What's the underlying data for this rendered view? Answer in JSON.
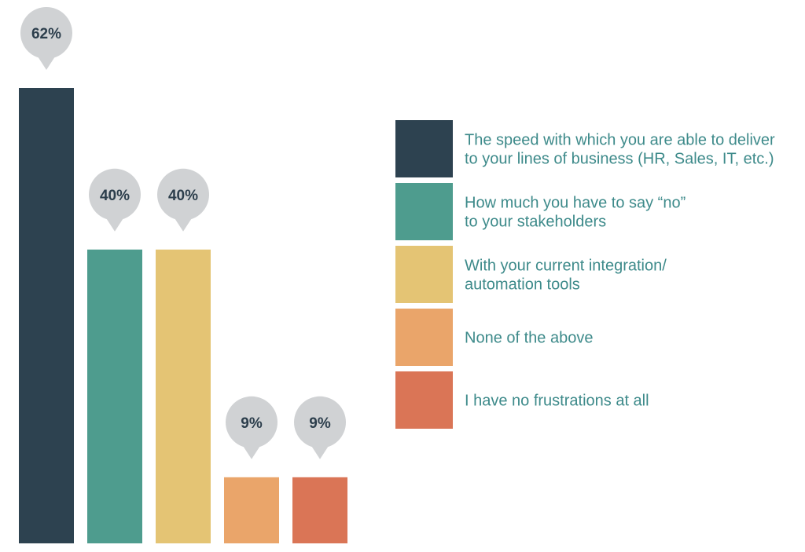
{
  "chart_data": {
    "type": "bar",
    "title": "",
    "xlabel": "",
    "ylabel": "",
    "ylim": [
      0,
      62
    ],
    "grid": false,
    "legend_position": "right",
    "categories": [
      "The speed with which you are able to deliver to your lines of business (HR, Sales, IT, etc.)",
      "How much you have to say “no” to your stakeholders",
      "With your current integration/ automation tools",
      "None of the above",
      "I have no frustrations at all"
    ],
    "values": [
      62,
      40,
      40,
      9,
      9
    ],
    "data_labels": [
      "62%",
      "40%",
      "40%",
      "9%",
      "9%"
    ],
    "colors": [
      "#2d4250",
      "#4e9c8e",
      "#e4c474",
      "#eaa56a",
      "#da7556"
    ],
    "label_bubble_color": "#d0d2d4",
    "legend": [
      {
        "lines": [
          "The speed with which you are able to deliver",
          "to your lines of business (HR, Sales, IT, etc.)"
        ]
      },
      {
        "lines": [
          "How much you have to say “no”",
          "to your stakeholders"
        ]
      },
      {
        "lines": [
          "With your current integration/",
          "automation tools"
        ]
      },
      {
        "lines": [
          "None of the above"
        ]
      },
      {
        "lines": [
          "I have no frustrations at all"
        ]
      }
    ]
  }
}
